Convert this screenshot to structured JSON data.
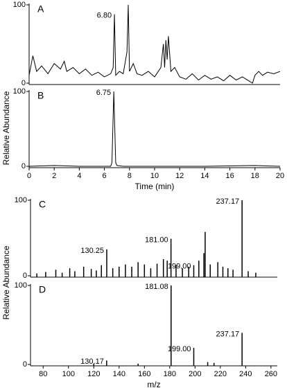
{
  "chart_data": [
    {
      "type": "line",
      "panel_label": "A",
      "ylabel": "Relative Abundance",
      "x": [
        0,
        0.3,
        0.6,
        1,
        1.5,
        2,
        2.5,
        2.8,
        3,
        3.5,
        4,
        4.5,
        5,
        5.5,
        6,
        6.5,
        6.7,
        6.8,
        6.9,
        7.2,
        7.5,
        7.8,
        7.9,
        8.0,
        8.3,
        8.6,
        9,
        9.5,
        10,
        10.5,
        10.7,
        10.8,
        10.9,
        11.0,
        11.1,
        11.3,
        11.6,
        12,
        12.5,
        13,
        13.5,
        14,
        14.5,
        15,
        15.5,
        16,
        16.5,
        17,
        17.5,
        17.8,
        18,
        18.3,
        18.6,
        19,
        19.5,
        20
      ],
      "series": [
        {
          "color": "#000000",
          "values": [
            10,
            35,
            15,
            22,
            12,
            25,
            18,
            28,
            15,
            20,
            12,
            18,
            10,
            14,
            8,
            12,
            20,
            88,
            10,
            15,
            12,
            40,
            100,
            15,
            25,
            12,
            10,
            15,
            8,
            20,
            50,
            20,
            55,
            30,
            60,
            15,
            20,
            8,
            5,
            12,
            4,
            10,
            5,
            8,
            3,
            10,
            4,
            8,
            3,
            0,
            10,
            15,
            10,
            14,
            12,
            15
          ]
        }
      ],
      "annotations": [
        {
          "text": "6.80",
          "x": 6.8,
          "y": 88
        }
      ],
      "xlim": [
        0,
        20
      ],
      "ylim": [
        0,
        100
      ],
      "yticks": [
        0,
        100
      ]
    },
    {
      "type": "line",
      "panel_label": "B",
      "xlabel": "Time (min)",
      "x": [
        0,
        2,
        4,
        6,
        6.5,
        6.6,
        6.75,
        6.9,
        7.0,
        7.5,
        10,
        14,
        18,
        20
      ],
      "series": [
        {
          "color": "#000000",
          "values": [
            0,
            1,
            0,
            0,
            0,
            5,
            100,
            5,
            1,
            0,
            0,
            0,
            1,
            0
          ]
        }
      ],
      "annotations": [
        {
          "text": "6.75",
          "x": 6.75,
          "y": 100
        }
      ],
      "xlim": [
        0,
        20
      ],
      "ylim": [
        0,
        100
      ],
      "yticks": [
        0,
        100
      ],
      "xticks": [
        0,
        2,
        4,
        6,
        8,
        10,
        12,
        14,
        16,
        18,
        20
      ]
    },
    {
      "type": "stem",
      "panel_label": "C",
      "ylabel": "Relative Abundance",
      "x": [
        75,
        82,
        90,
        95,
        101,
        105,
        112,
        118,
        122,
        126,
        130.25,
        135,
        140,
        145,
        150,
        155,
        160,
        165,
        170,
        175,
        178,
        181.0,
        185,
        190,
        195,
        199.0,
        203,
        207,
        208,
        212,
        218,
        222,
        226,
        230,
        237.17,
        242,
        248
      ],
      "series": [
        {
          "color": "#000000",
          "values": [
            3,
            5,
            8,
            4,
            10,
            6,
            12,
            9,
            7,
            14,
            35,
            10,
            12,
            15,
            12,
            18,
            15,
            10,
            16,
            22,
            20,
            49,
            14,
            10,
            12,
            14,
            20,
            30,
            58,
            15,
            18,
            12,
            10,
            8,
            100,
            6,
            4
          ]
        }
      ],
      "annotations": [
        {
          "text": "130.25",
          "x": 130.25,
          "y": 35
        },
        {
          "text": "181.00",
          "x": 181.0,
          "y": 49
        },
        {
          "text": "199.00",
          "x": 199.0,
          "y": 14
        },
        {
          "text": "237.17",
          "x": 237.17,
          "y": 100
        }
      ],
      "xlim": [
        70,
        265
      ],
      "ylim": [
        0,
        100
      ],
      "yticks": [
        0,
        100
      ]
    },
    {
      "type": "stem",
      "panel_label": "D",
      "xlabel": "m/z",
      "x": [
        120,
        130.17,
        155,
        181.08,
        199.0,
        210,
        215,
        237.17
      ],
      "series": [
        {
          "color": "#000000",
          "values": [
            1,
            5,
            1,
            100,
            21,
            3,
            2,
            40
          ]
        }
      ],
      "annotations": [
        {
          "text": "181.08",
          "x": 181.08,
          "y": 100
        },
        {
          "text": "130.17",
          "x": 130.17,
          "y": 5
        },
        {
          "text": "199.00",
          "x": 199.0,
          "y": 21
        },
        {
          "text": "237.17",
          "x": 237.17,
          "y": 40
        }
      ],
      "xlim": [
        70,
        265
      ],
      "ylim": [
        0,
        100
      ],
      "yticks": [
        0,
        100
      ],
      "xticks": [
        80,
        100,
        120,
        140,
        160,
        180,
        200,
        220,
        240,
        260
      ]
    }
  ]
}
